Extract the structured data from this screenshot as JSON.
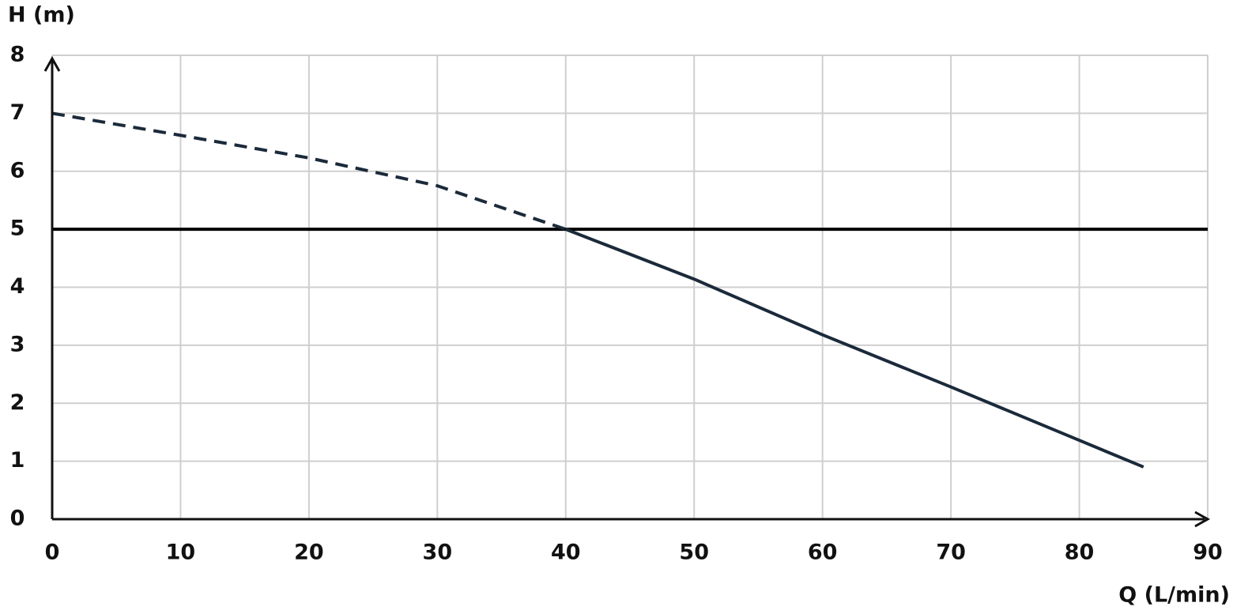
{
  "chart_data": {
    "type": "line",
    "y_label": "H (m)",
    "x_label": "Q (L/min)",
    "xlim": [
      0,
      90
    ],
    "xticks": [
      0,
      10,
      20,
      30,
      40,
      50,
      60,
      70,
      80,
      90
    ],
    "ylim": [
      0,
      8
    ],
    "yticks": [
      0,
      1,
      2,
      3,
      4,
      5,
      6,
      7,
      8
    ],
    "grid": true,
    "grid_color": "#cfcfcf",
    "reference_line": 5,
    "reference_color": "#000000",
    "series": [
      {
        "color": "#1b2a3a",
        "dashed": true,
        "x": [
          0,
          10,
          20,
          30,
          40
        ],
        "values": [
          7,
          6.62,
          6.23,
          5.75,
          5
        ]
      },
      {
        "color": "#1b2a3a",
        "dashed": false,
        "x": [
          40,
          50,
          60,
          70,
          80,
          85
        ],
        "values": [
          5,
          4.14,
          3.18,
          2.28,
          1.36,
          0.9
        ]
      }
    ]
  }
}
